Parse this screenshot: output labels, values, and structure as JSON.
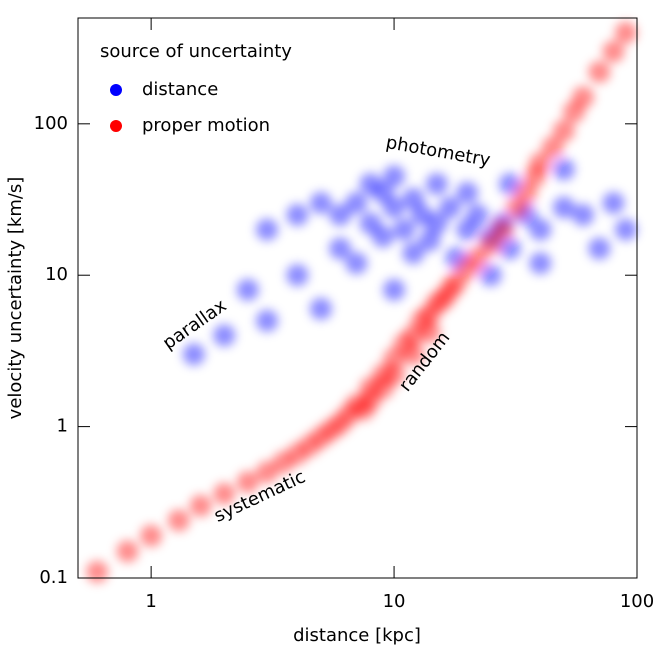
{
  "chart_data": {
    "type": "scatter",
    "xlabel": "distance [kpc]",
    "ylabel": "velocity uncertainty [km/s]",
    "xscale": "log",
    "yscale": "log",
    "xlim": [
      0.5,
      100
    ],
    "ylim": [
      0.1,
      500
    ],
    "xticks": [
      1,
      10,
      100
    ],
    "yticks": [
      0.1,
      1,
      10,
      100
    ],
    "legend_title": "source of uncertainty",
    "legend": "upper left",
    "annotations": [
      "photometry",
      "parallax",
      "random",
      "systematic"
    ],
    "series": [
      {
        "name": "distance",
        "color": "#0000ff",
        "x": [
          6,
          7,
          8,
          9,
          10,
          11,
          12,
          13,
          15,
          17,
          20,
          22,
          25,
          28,
          30,
          35,
          40,
          50,
          60,
          80,
          5,
          4,
          3,
          6,
          8,
          10,
          15,
          20,
          7,
          12,
          18,
          4,
          2.5,
          3,
          2,
          1.5,
          5,
          10,
          25,
          40,
          70,
          90,
          30,
          50,
          9,
          14
        ],
        "y": [
          25,
          30,
          22,
          35,
          28,
          20,
          32,
          25,
          22,
          28,
          20,
          25,
          18,
          22,
          15,
          25,
          20,
          28,
          25,
          30,
          30,
          25,
          20,
          15,
          40,
          45,
          40,
          35,
          12,
          14,
          13,
          10,
          8,
          5,
          4,
          3,
          6,
          8,
          10,
          12,
          15,
          20,
          40,
          50,
          18,
          17
        ]
      },
      {
        "name": "proper motion",
        "color": "#ff0000",
        "x": [
          0.6,
          0.8,
          1,
          1.3,
          1.6,
          2,
          2.5,
          3,
          3.5,
          4,
          4.5,
          5,
          5.5,
          6,
          6.5,
          7,
          7.5,
          8,
          8,
          9,
          9,
          10,
          10,
          11,
          12,
          12,
          13,
          14,
          14,
          15,
          16,
          17,
          18,
          20,
          22,
          25,
          28,
          32,
          35,
          38,
          40,
          45,
          50,
          55,
          60,
          70,
          80,
          90
        ],
        "y": [
          0.11,
          0.15,
          0.19,
          0.24,
          0.3,
          0.36,
          0.43,
          0.5,
          0.58,
          0.66,
          0.75,
          0.85,
          0.95,
          1.05,
          1.2,
          1.4,
          1.3,
          1.8,
          1.5,
          2.2,
          1.8,
          2.8,
          2.2,
          3.5,
          4,
          3,
          5,
          5.5,
          4.2,
          6.5,
          7,
          8,
          9,
          11,
          13,
          16,
          20,
          28,
          35,
          45,
          55,
          70,
          90,
          120,
          150,
          220,
          300,
          400
        ]
      }
    ]
  }
}
